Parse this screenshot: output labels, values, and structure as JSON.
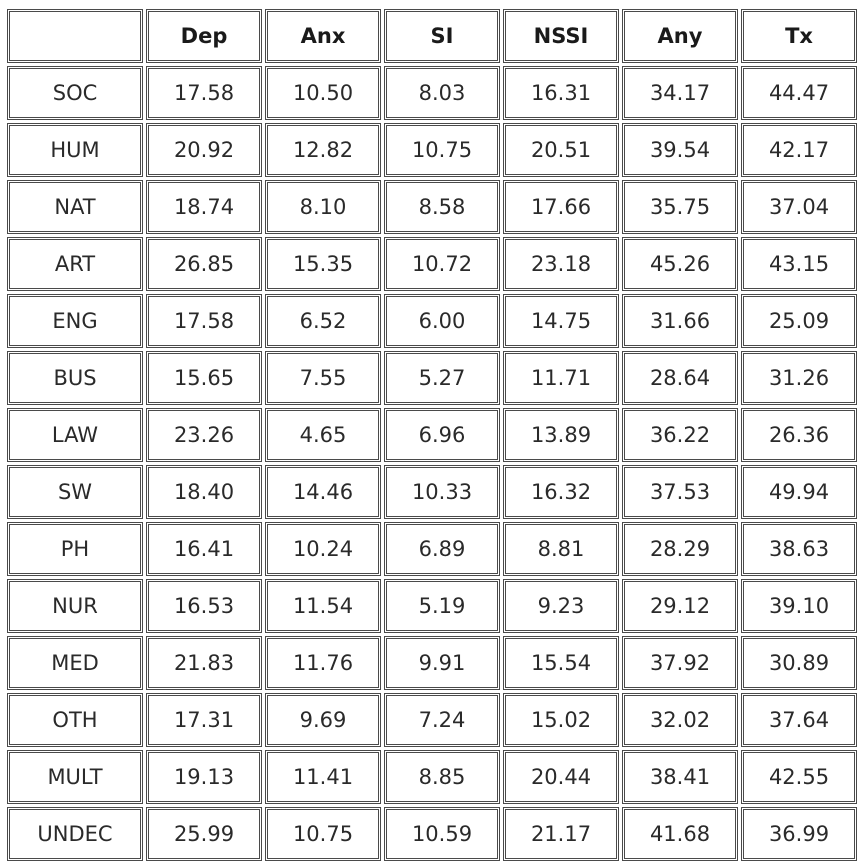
{
  "table": {
    "columns": [
      "",
      "Dep",
      "Anx",
      "SI",
      "NSSI",
      "Any",
      "Tx"
    ],
    "rows": [
      {
        "label": "SOC",
        "values": [
          "17.58",
          "10.50",
          "8.03",
          "16.31",
          "34.17",
          "44.47"
        ]
      },
      {
        "label": "HUM",
        "values": [
          "20.92",
          "12.82",
          "10.75",
          "20.51",
          "39.54",
          "42.17"
        ]
      },
      {
        "label": "NAT",
        "values": [
          "18.74",
          "8.10",
          "8.58",
          "17.66",
          "35.75",
          "37.04"
        ]
      },
      {
        "label": "ART",
        "values": [
          "26.85",
          "15.35",
          "10.72",
          "23.18",
          "45.26",
          "43.15"
        ]
      },
      {
        "label": "ENG",
        "values": [
          "17.58",
          "6.52",
          "6.00",
          "14.75",
          "31.66",
          "25.09"
        ]
      },
      {
        "label": "BUS",
        "values": [
          "15.65",
          "7.55",
          "5.27",
          "11.71",
          "28.64",
          "31.26"
        ]
      },
      {
        "label": "LAW",
        "values": [
          "23.26",
          "4.65",
          "6.96",
          "13.89",
          "36.22",
          "26.36"
        ]
      },
      {
        "label": "SW",
        "values": [
          "18.40",
          "14.46",
          "10.33",
          "16.32",
          "37.53",
          "49.94"
        ]
      },
      {
        "label": "PH",
        "values": [
          "16.41",
          "10.24",
          "6.89",
          "8.81",
          "28.29",
          "38.63"
        ]
      },
      {
        "label": "NUR",
        "values": [
          "16.53",
          "11.54",
          "5.19",
          "9.23",
          "29.12",
          "39.10"
        ]
      },
      {
        "label": "MED",
        "values": [
          "21.83",
          "11.76",
          "9.91",
          "15.54",
          "37.92",
          "30.89"
        ]
      },
      {
        "label": "OTH",
        "values": [
          "17.31",
          "9.69",
          "7.24",
          "15.02",
          "32.02",
          "37.64"
        ]
      },
      {
        "label": "MULT",
        "values": [
          "19.13",
          "11.41",
          "8.85",
          "20.44",
          "38.41",
          "42.55"
        ]
      },
      {
        "label": "UNDEC",
        "values": [
          "25.99",
          "10.75",
          "10.59",
          "21.17",
          "41.68",
          "36.99"
        ]
      }
    ]
  }
}
